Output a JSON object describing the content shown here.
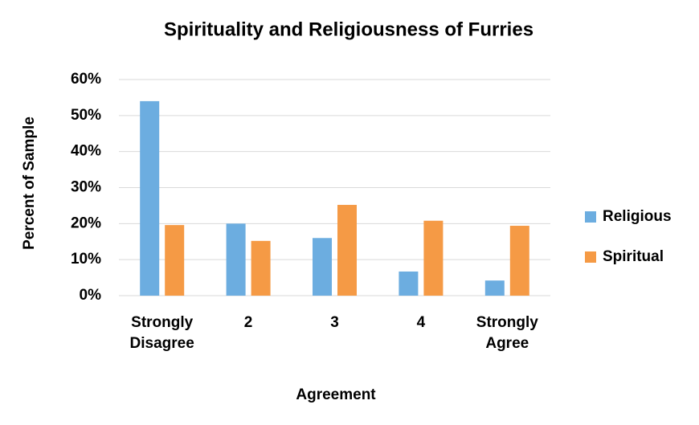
{
  "chart_data": {
    "type": "bar",
    "title": "Spirituality and Religiousness of Furries",
    "x_label": "Agreement",
    "y_label": "Percent of Sample",
    "categories": [
      "Strongly Disagree",
      "2",
      "3",
      "4",
      "Strongly Agree"
    ],
    "series": [
      {
        "name": "Religious",
        "color": "#6cade0",
        "values": [
          54,
          20,
          16,
          6.7,
          4.2
        ]
      },
      {
        "name": "Spiritual",
        "color": "#f59a45",
        "values": [
          19.6,
          15.2,
          25.2,
          20.8,
          19.4
        ]
      }
    ],
    "ylim": [
      0,
      60
    ],
    "yticks": [
      {
        "value": 0,
        "label": "0%"
      },
      {
        "value": 10,
        "label": "10%"
      },
      {
        "value": 20,
        "label": "20%"
      },
      {
        "value": 30,
        "label": "30%"
      },
      {
        "value": 40,
        "label": "40%"
      },
      {
        "value": 50,
        "label": "50%"
      },
      {
        "value": 60,
        "label": "60%"
      }
    ],
    "grid": true,
    "legend": "right"
  }
}
